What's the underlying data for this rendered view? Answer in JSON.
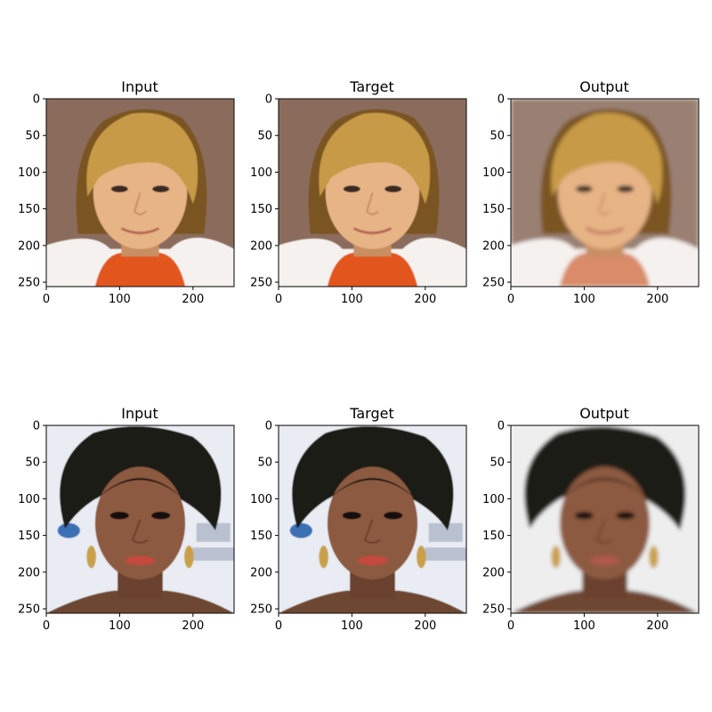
{
  "figure": {
    "background": "#ffffff",
    "axis_color": "#000000",
    "rows": [
      {
        "id": "blond-man",
        "panels": [
          {
            "title": "Input",
            "kind": "input"
          },
          {
            "title": "Target",
            "kind": "target"
          },
          {
            "title": "Output",
            "kind": "output"
          }
        ],
        "colors": {
          "background": "#8b6c5c",
          "hair": "#c69a46",
          "hair_dark": "#7a5423",
          "skin": "#e7b486",
          "skin_shadow": "#c88f62",
          "shirt": "#e2541c",
          "collar": "#f5f1ee",
          "lips": "#b86a55",
          "eyes": "#3b2a22"
        }
      },
      {
        "id": "woman-dark-hair",
        "panels": [
          {
            "title": "Input",
            "kind": "input"
          },
          {
            "title": "Target",
            "kind": "target"
          },
          {
            "title": "Output",
            "kind": "output"
          }
        ],
        "colors": {
          "background": "#e9ecf2",
          "hair": "#1f1a18",
          "hair_dark": "#0e0b0a",
          "skin": "#8c5a40",
          "skin_shadow": "#6b412d",
          "shirt": "#6e4632",
          "collar": "#7c5038",
          "lips": "#c64a3c",
          "eyes": "#160f0c",
          "earring": "#c9a04a"
        }
      }
    ],
    "x_ticks": [
      "0",
      "100",
      "200"
    ],
    "y_ticks": [
      "0",
      "50",
      "100",
      "150",
      "200",
      "250"
    ]
  }
}
